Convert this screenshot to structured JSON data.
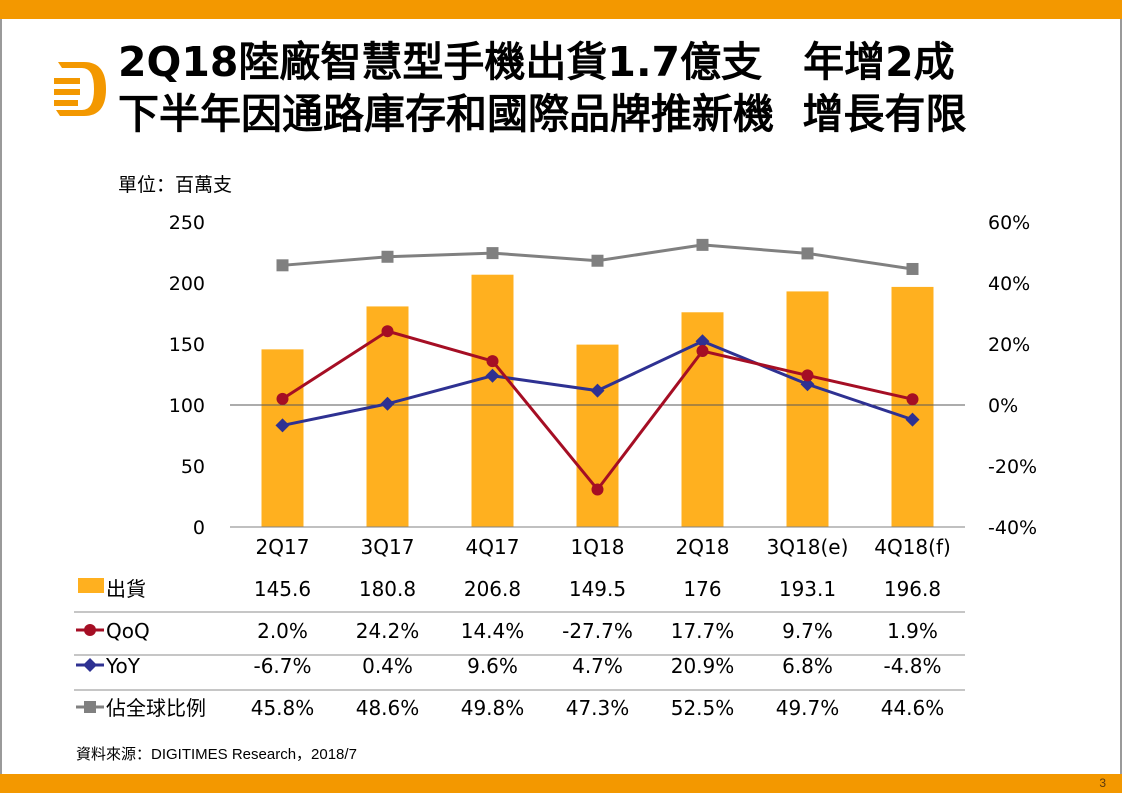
{
  "header": {
    "title_line1": "2Q18陸廠智慧型手機出貨1.7億支　年增2成",
    "title_line2": "下半年因通路庫存和國際品牌推新機  增長有限",
    "logo_icon": "digitimes-d-logo-icon"
  },
  "unit_label": "單位：百萬支",
  "source_label": "資料來源：DIGITIMES Research，2018/7",
  "page_number": "3",
  "colors": {
    "accent": "#f39800",
    "bar": "#ffb01f",
    "qoq": "#a50e24",
    "yoy": "#2e3192",
    "share": "#808080"
  },
  "chart_data": {
    "type": "bar",
    "title": "2Q18陸廠智慧型手機出貨1.7億支 年增2成",
    "xlabel": "",
    "ylabel": "單位：百萬支",
    "categories": [
      "2Q17",
      "3Q17",
      "4Q17",
      "1Q18",
      "2Q18",
      "3Q18(e)",
      "4Q18(f)"
    ],
    "ylim": [
      0,
      250
    ],
    "y_ticks": [
      "0",
      "50",
      "100",
      "150",
      "200",
      "250"
    ],
    "y2lim": [
      -40,
      60
    ],
    "y2_ticks": [
      "-40%",
      "-20%",
      "0%",
      "20%",
      "40%",
      "60%"
    ],
    "grid": false,
    "legend": "data-table-below",
    "series": [
      {
        "name": "出貨",
        "type": "bar",
        "axis": "left",
        "values": [
          145.6,
          180.8,
          206.8,
          149.5,
          176,
          193.1,
          196.8
        ],
        "labels": [
          "145.6",
          "180.8",
          "206.8",
          "149.5",
          "176",
          "193.1",
          "196.8"
        ]
      },
      {
        "name": "QoQ",
        "type": "line",
        "marker": "circle",
        "axis": "right",
        "values": [
          2.0,
          24.2,
          14.4,
          -27.7,
          17.7,
          9.7,
          1.9
        ],
        "labels": [
          "2.0%",
          "24.2%",
          "14.4%",
          "-27.7%",
          "17.7%",
          "9.7%",
          "1.9%"
        ]
      },
      {
        "name": "YoY",
        "type": "line",
        "marker": "diamond",
        "axis": "right",
        "values": [
          -6.7,
          0.4,
          9.6,
          4.7,
          20.9,
          6.8,
          -4.8
        ],
        "labels": [
          "-6.7%",
          "0.4%",
          "9.6%",
          "4.7%",
          "20.9%",
          "6.8%",
          "-4.8%"
        ]
      },
      {
        "name": "佔全球比例",
        "type": "line",
        "marker": "square",
        "axis": "right",
        "values": [
          45.8,
          48.6,
          49.8,
          47.3,
          52.5,
          49.7,
          44.6
        ],
        "labels": [
          "45.8%",
          "48.6%",
          "49.8%",
          "47.3%",
          "52.5%",
          "49.7%",
          "44.6%"
        ]
      }
    ]
  }
}
